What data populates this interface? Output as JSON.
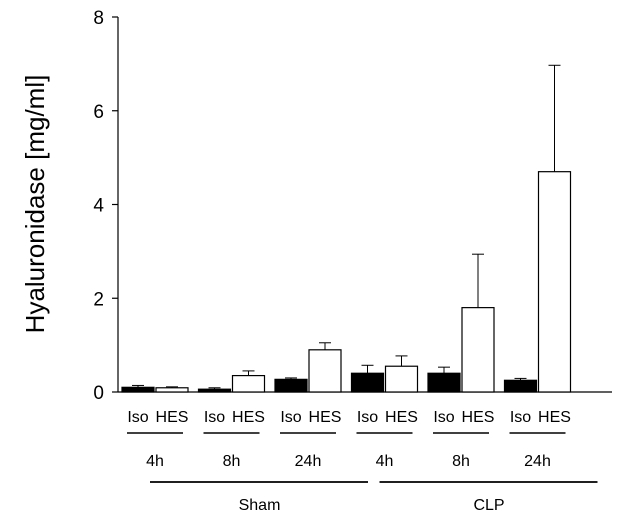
{
  "chart_data": {
    "type": "bar",
    "ylabel": "Hyaluronidase [mg/ml]",
    "ylim": [
      0,
      8
    ],
    "yticks": [
      0,
      2,
      4,
      6,
      8
    ],
    "groups": [
      {
        "label": "Sham",
        "subgroups": [
          {
            "time": "4h",
            "bars": [
              {
                "label": "Iso",
                "value": 0.1,
                "error": 0.04
              },
              {
                "label": "HES",
                "value": 0.09,
                "error": 0.02
              }
            ]
          },
          {
            "time": "8h",
            "bars": [
              {
                "label": "Iso",
                "value": 0.06,
                "error": 0.03
              },
              {
                "label": "HES",
                "value": 0.35,
                "error": 0.1
              }
            ]
          },
          {
            "time": "24h",
            "bars": [
              {
                "label": "Iso",
                "value": 0.27,
                "error": 0.03
              },
              {
                "label": "HES",
                "value": 0.9,
                "error": 0.15
              }
            ]
          }
        ]
      },
      {
        "label": "CLP",
        "subgroups": [
          {
            "time": "4h",
            "bars": [
              {
                "label": "Iso",
                "value": 0.4,
                "error": 0.17
              },
              {
                "label": "HES",
                "value": 0.55,
                "error": 0.22
              }
            ]
          },
          {
            "time": "8h",
            "bars": [
              {
                "label": "Iso",
                "value": 0.4,
                "error": 0.13
              },
              {
                "label": "HES",
                "value": 1.8,
                "error": 1.14
              }
            ]
          },
          {
            "time": "24h",
            "bars": [
              {
                "label": "Iso",
                "value": 0.25,
                "error": 0.04
              },
              {
                "label": "HES",
                "value": 4.7,
                "error": 2.27
              }
            ]
          }
        ]
      }
    ],
    "series_fill": {
      "Iso": "#000000",
      "HES": "#ffffff"
    }
  }
}
